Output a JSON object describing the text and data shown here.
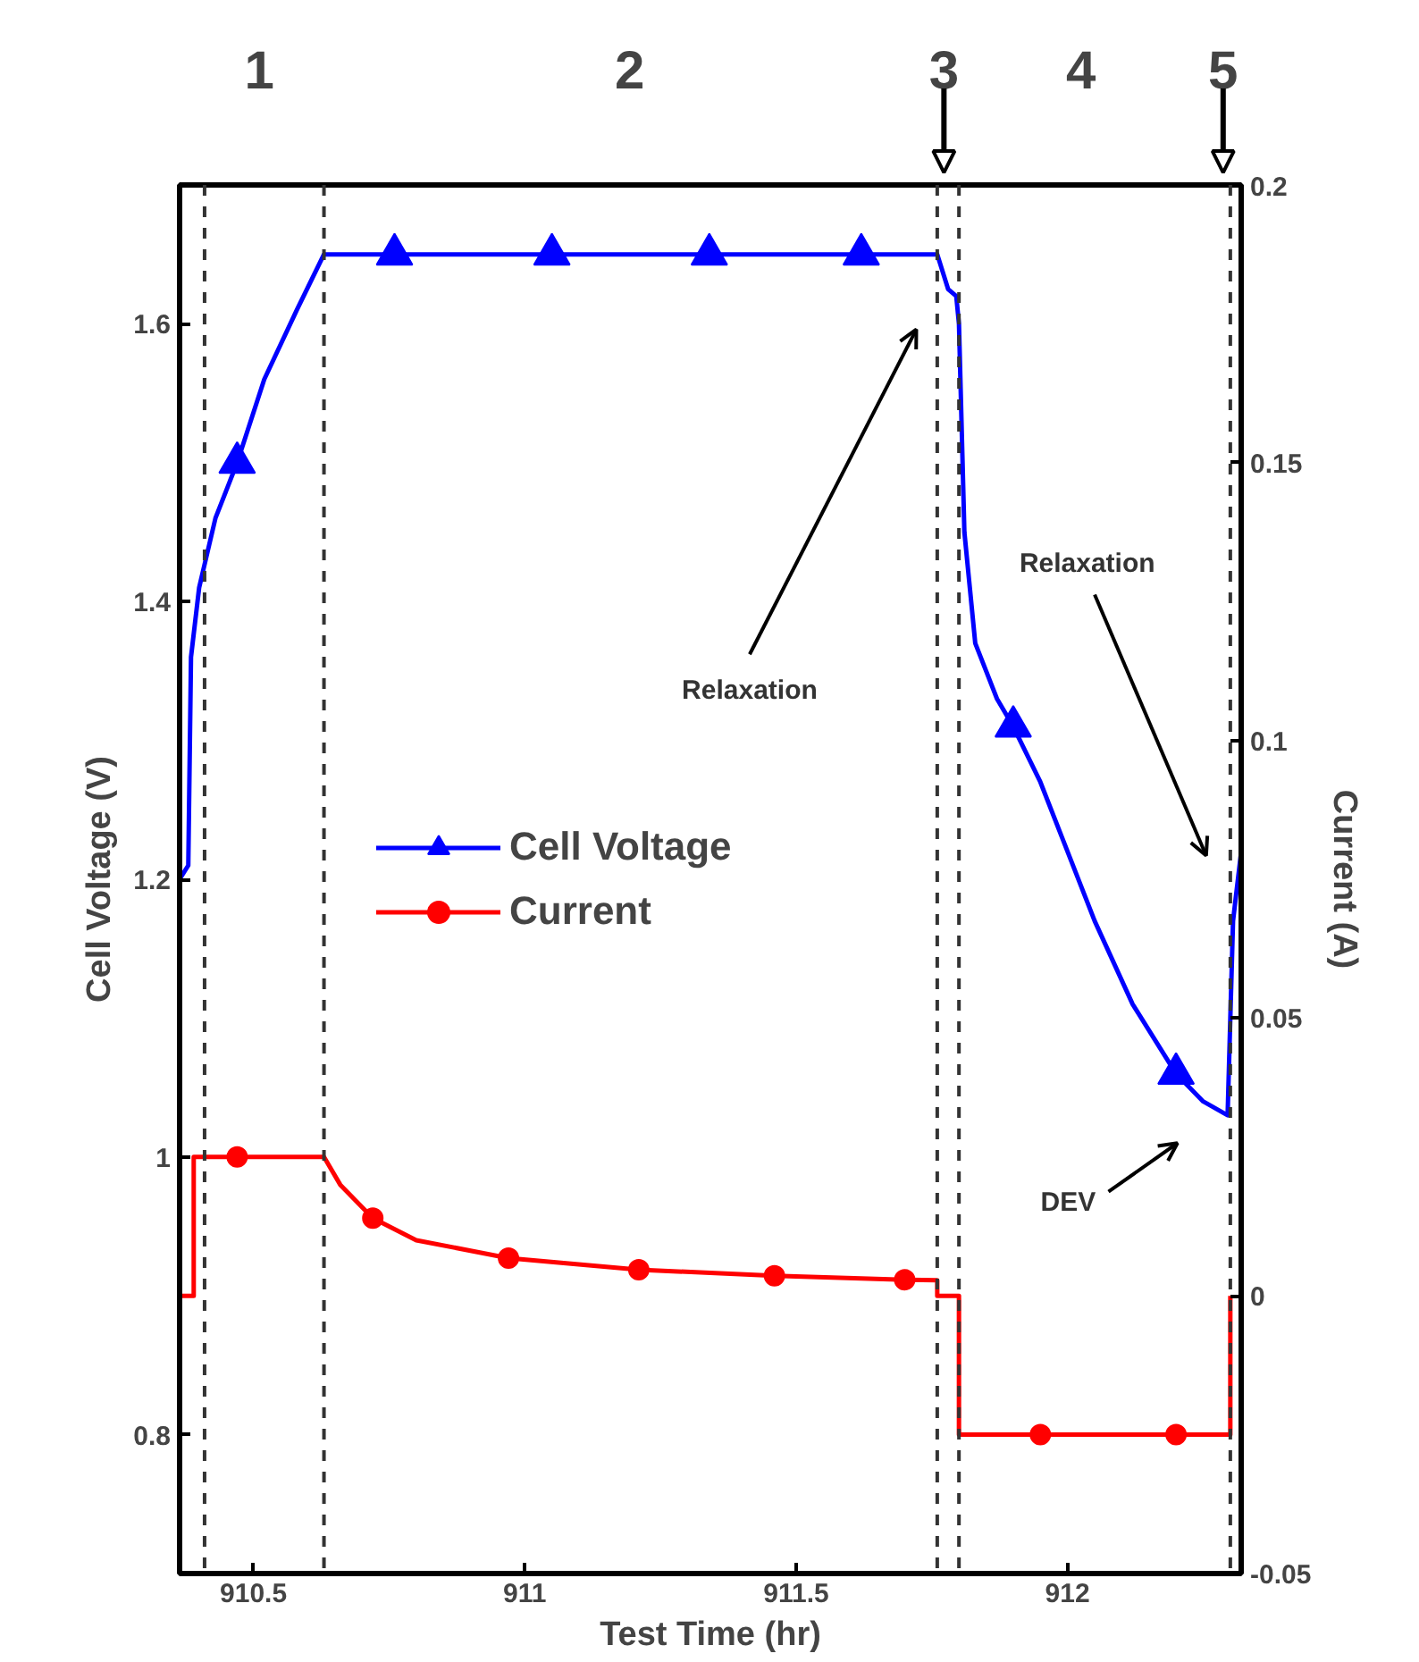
{
  "chart_data": {
    "type": "line",
    "xlabel": "Test Time (hr)",
    "ylabel": "Cell Voltage (V)",
    "y2label": "Current (A)",
    "xlim": [
      910.364,
      912.32
    ],
    "xticks": [
      910.5,
      911,
      911.5,
      912
    ],
    "ylim": [
      0.7,
      1.7
    ],
    "yticks": [
      0.8,
      1,
      1.2,
      1.4,
      1.6
    ],
    "y2lim": [
      -0.05,
      0.2
    ],
    "y2ticks": [
      -0.05,
      0,
      0.05,
      0.1,
      0.15,
      0.2
    ],
    "grid": false,
    "legend": "left",
    "line_style": "solid",
    "series": [
      {
        "name": "Cell Voltage",
        "color": "#0000ff",
        "marker": "none",
        "x": [
          910.364,
          910.38,
          910.385,
          910.4,
          910.43,
          910.47,
          910.52,
          910.58,
          910.63,
          910.8,
          911.0,
          911.3,
          911.6,
          911.76,
          911.78,
          911.795,
          911.8,
          911.81,
          911.83,
          911.87,
          911.9,
          911.95,
          911.99,
          912.05,
          912.12,
          912.2,
          912.25,
          912.295,
          912.3,
          912.305,
          912.32
        ],
        "values": [
          1.2,
          1.21,
          1.36,
          1.41,
          1.46,
          1.5,
          1.56,
          1.61,
          1.65,
          1.65,
          1.65,
          1.65,
          1.65,
          1.65,
          1.625,
          1.62,
          1.6,
          1.45,
          1.37,
          1.33,
          1.31,
          1.27,
          1.23,
          1.17,
          1.11,
          1.06,
          1.04,
          1.03,
          1.1,
          1.17,
          1.22
        ]
      },
      {
        "color": "#0000ff",
        "type": "scatter",
        "marker": "triangle",
        "x": [
          910.47,
          910.76,
          911.05,
          911.34,
          911.62,
          911.9,
          912.2
        ],
        "values": [
          1.5,
          1.65,
          1.65,
          1.65,
          1.65,
          1.31,
          1.06
        ]
      },
      {
        "name": "Current",
        "color": "#ff0000",
        "marker": "none",
        "axis": "y2",
        "x": [
          910.364,
          910.39,
          910.39,
          910.63,
          910.66,
          910.72,
          910.8,
          910.97,
          911.21,
          911.46,
          911.7,
          911.76,
          911.76,
          911.8,
          911.8,
          912.3,
          912.3
        ],
        "values": [
          0,
          0,
          0.025,
          0.025,
          0.02,
          0.014,
          0.01,
          0.0068,
          0.0047,
          0.0036,
          0.0029,
          0.0028,
          0,
          0,
          -0.025,
          -0.025,
          0
        ]
      },
      {
        "color": "#ff0000",
        "type": "scatter",
        "marker": "circle",
        "axis": "y2",
        "x": [
          910.47,
          910.72,
          910.97,
          911.21,
          911.46,
          911.7,
          911.95,
          912.2
        ],
        "values": [
          0.025,
          0.014,
          0.0068,
          0.0047,
          0.0036,
          0.0029,
          -0.025,
          -0.025
        ]
      }
    ],
    "ref_lines": [
      {
        "axis": "x",
        "value": 910.41,
        "color": "#333333",
        "line_style": "dashed"
      },
      {
        "axis": "x",
        "value": 910.63,
        "color": "#333333",
        "line_style": "dashed"
      },
      {
        "axis": "x",
        "value": 911.76,
        "color": "#333333",
        "line_style": "dashed"
      },
      {
        "axis": "x",
        "value": 911.8,
        "color": "#333333",
        "line_style": "dashed"
      },
      {
        "axis": "x",
        "value": 912.3,
        "color": "#333333",
        "line_style": "dashed"
      }
    ],
    "annotations": [
      "1",
      "2",
      "3",
      "4",
      "5",
      "Relaxation",
      "Relaxation",
      "DEV"
    ]
  }
}
